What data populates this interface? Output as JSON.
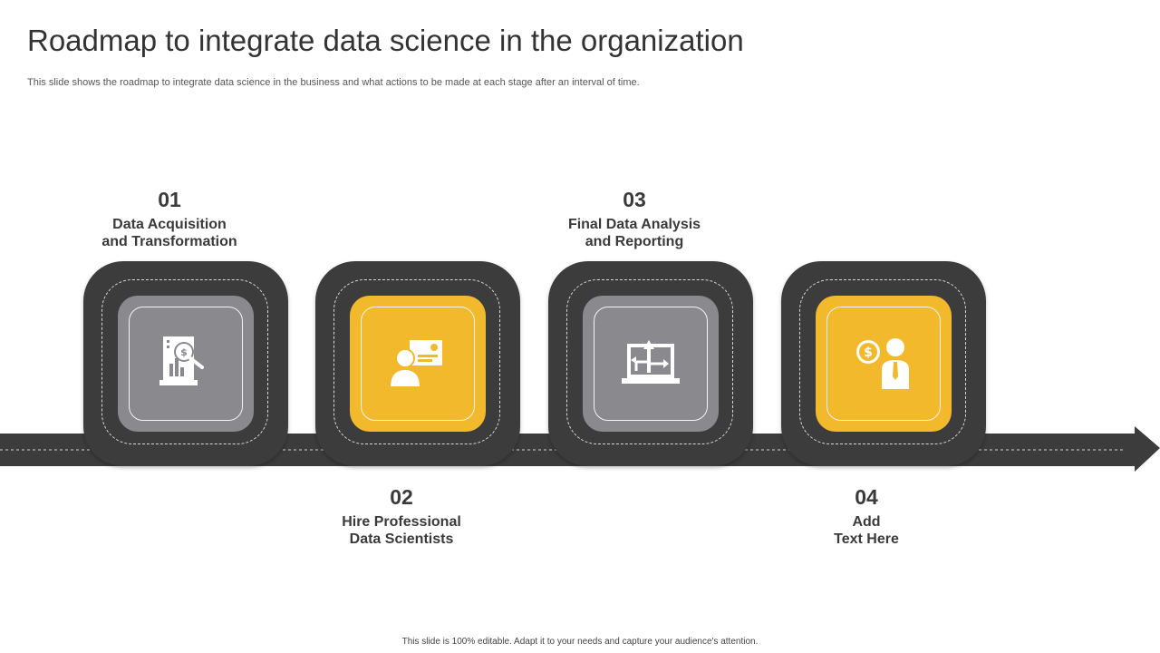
{
  "slide": {
    "title": "Roadmap to integrate data science in the organization",
    "subtitle": "This slide shows the roadmap to integrate data science in the business and what actions to be made at each stage after an interval of time.",
    "footer": "This slide is 100% editable. Adapt it to your needs and capture your audience's attention."
  },
  "colors": {
    "dark": "#3c3c3c",
    "gray_tile": "#8a898e",
    "yellow_tile": "#f2b92c",
    "text": "#333333"
  },
  "steps": [
    {
      "number": "01",
      "line1": "Data Acquisition",
      "line2": "and Transformation",
      "tile_color": "gray",
      "icon": "report-search-icon",
      "label_position": "above"
    },
    {
      "number": "02",
      "line1": "Hire Professional",
      "line2": "Data Scientists",
      "tile_color": "yellow",
      "icon": "presenter-icon",
      "label_position": "below"
    },
    {
      "number": "03",
      "line1": "Final Data Analysis",
      "line2": "and Reporting",
      "tile_color": "gray",
      "icon": "laptop-arrows-icon",
      "label_position": "above"
    },
    {
      "number": "04",
      "line1": "Add",
      "line2": "Text Here",
      "tile_color": "yellow",
      "icon": "money-person-icon",
      "label_position": "below"
    }
  ]
}
